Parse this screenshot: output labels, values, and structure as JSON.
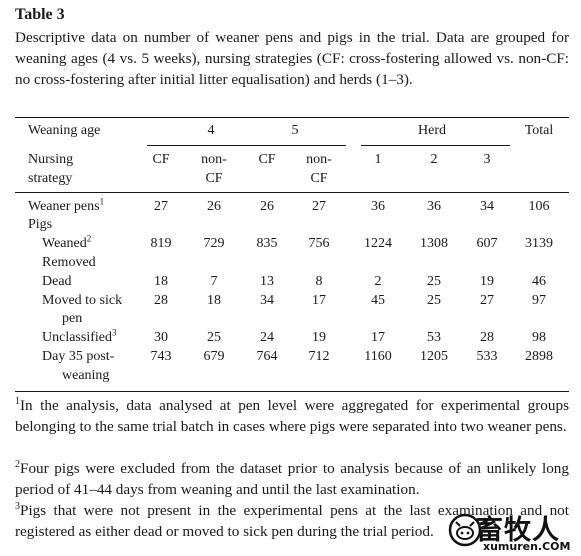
{
  "title": "Table 3",
  "caption": "Descriptive data on number of weaner pens and pigs in the trial. Data are grouped for weaning ages (4 vs. 5 weeks), nursing strategies (CF: cross-fostering allowed vs. non-CF: no cross-fostering after initial litter equalisation) and herds (1–3).",
  "header": {
    "weaning_age": "Weaning age",
    "age4": "4",
    "age5": "5",
    "herd": "Herd",
    "total": "Total",
    "nursing_line1": "Nursing",
    "nursing_line2": "strategy",
    "cf": "CF",
    "noncf_line1": "non-",
    "noncf_line2": "CF",
    "herd1": "1",
    "herd2": "2",
    "herd3": "3"
  },
  "rows": {
    "weaner_pens": {
      "label": "Weaner pens",
      "sup": "1",
      "values": [
        "27",
        "26",
        "26",
        "27",
        "36",
        "36",
        "34",
        "106"
      ]
    },
    "pigs": {
      "label": "Pigs"
    },
    "weaned": {
      "label": "Weaned",
      "sup": "2",
      "values": [
        "819",
        "729",
        "835",
        "756",
        "1224",
        "1308",
        "607",
        "3139"
      ]
    },
    "removed": {
      "label": "Removed"
    },
    "dead": {
      "label": "Dead",
      "values": [
        "18",
        "7",
        "13",
        "8",
        "2",
        "25",
        "19",
        "46"
      ]
    },
    "moved": {
      "label_line1": "Moved to sick",
      "label_line2": "pen",
      "values": [
        "28",
        "18",
        "34",
        "17",
        "45",
        "25",
        "27",
        "97"
      ]
    },
    "unclassified": {
      "label": "Unclassified",
      "sup": "3",
      "values": [
        "30",
        "25",
        "24",
        "19",
        "17",
        "53",
        "28",
        "98"
      ]
    },
    "day35": {
      "label_line1": "Day 35 post-",
      "label_line2": "weaning",
      "values": [
        "743",
        "679",
        "764",
        "712",
        "1160",
        "1205",
        "533",
        "2898"
      ]
    }
  },
  "footnotes": [
    {
      "mark": "1",
      "text": "In the analysis, data analysed at pen level were aggregated for experimental groups belonging to the same trial batch in cases where pigs were separated into two weaner pens."
    },
    {
      "mark": "2",
      "text": "Four pigs were excluded from the dataset prior to analysis because of an unlikely long period of 41–44 days from weaning and until the last examination."
    },
    {
      "mark": "3",
      "text": "Pigs that were not present in the experimental pens at the last examination and not registered as either dead or moved to sick pen during the trial period."
    }
  ],
  "watermark": {
    "cn": "畜牧人",
    "en": "xumuren.COM",
    "icon": "pig-logo-icon"
  }
}
